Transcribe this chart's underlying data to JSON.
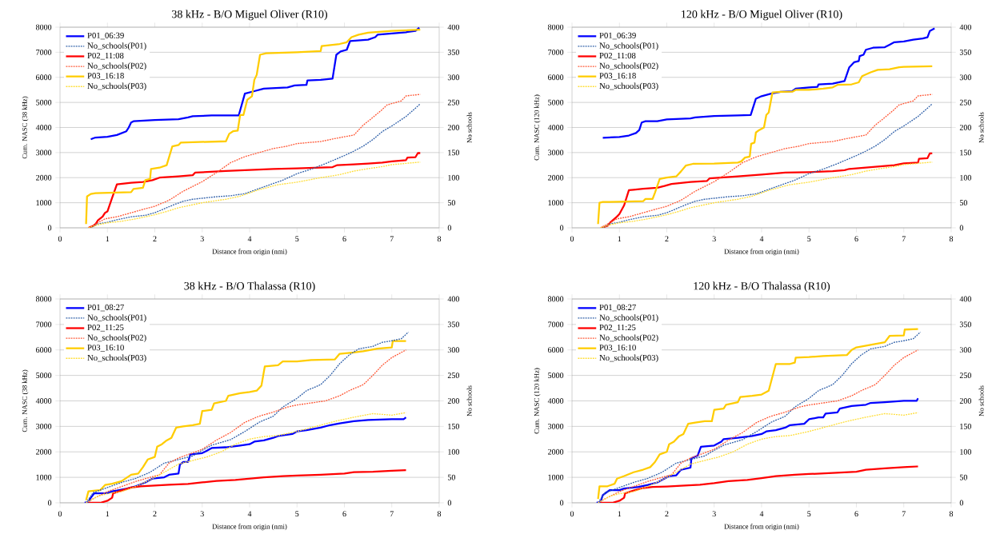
{
  "chart_data": [
    {
      "type": "line",
      "title": "38 kHz - B/O Miguel Oliver (R10)",
      "xlabel": "Distance from origin (nmi)",
      "ylabel": "Cum. NASC (38 kHz)",
      "y2label": "No schools",
      "xlim": [
        0,
        8
      ],
      "xticks": [
        0,
        1,
        2,
        3,
        4,
        5,
        6,
        7,
        8
      ],
      "ylim": [
        0,
        8000
      ],
      "yticks": [
        0,
        1000,
        2000,
        3000,
        4000,
        5000,
        6000,
        7000,
        8000
      ],
      "y2lim": [
        0,
        400
      ],
      "y2ticks": [
        0,
        50,
        100,
        150,
        200,
        250,
        300,
        350,
        400
      ],
      "grid": "y",
      "legend": "top left",
      "series": [
        {
          "name": "P01_06:39",
          "color": "#0000ff",
          "line_style": "solid",
          "x": [
            0.65,
            0.7,
            0.75,
            1.0,
            1.2,
            1.4,
            1.45,
            1.5,
            1.55,
            2.0,
            2.5,
            2.7,
            2.8,
            3.2,
            3.77,
            3.9,
            4.1,
            4.3,
            4.8,
            4.95,
            5.2,
            5.22,
            5.5,
            5.75,
            5.83,
            5.92,
            6.05,
            6.12,
            6.5,
            6.65,
            6.7,
            7.0,
            7.3,
            7.5,
            7.58
          ],
          "values": [
            3530,
            3570,
            3600,
            3630,
            3700,
            3850,
            4000,
            4200,
            4250,
            4300,
            4330,
            4400,
            4450,
            4480,
            4480,
            5350,
            5450,
            5550,
            5600,
            5680,
            5700,
            5880,
            5900,
            5950,
            6900,
            7030,
            7100,
            7450,
            7500,
            7600,
            7700,
            7750,
            7800,
            7850,
            7980
          ]
        },
        {
          "name": "No_schools(P01)",
          "color": "#2e5fa8",
          "line_style": "dotted",
          "axis": "y2",
          "x": [
            0.65,
            0.8,
            1.0,
            1.2,
            1.5,
            1.8,
            2.0,
            2.2,
            2.4,
            2.6,
            2.8,
            3.0,
            3.3,
            3.6,
            3.9,
            4.1,
            4.4,
            4.7,
            5.0,
            5.3,
            5.6,
            5.8,
            6.0,
            6.2,
            6.4,
            6.6,
            6.8,
            7.0,
            7.3,
            7.6
          ],
          "values": [
            0,
            8,
            11,
            16,
            22,
            25,
            30,
            38,
            46,
            53,
            57,
            59,
            62,
            64,
            68,
            75,
            85,
            95,
            108,
            117,
            128,
            136,
            144,
            153,
            163,
            176,
            192,
            203,
            222,
            247
          ]
        },
        {
          "name": "P02_11:08",
          "color": "#ff0000",
          "line_style": "solid",
          "x": [
            0.6,
            0.7,
            0.75,
            0.8,
            0.9,
            0.95,
            1.0,
            1.1,
            1.2,
            1.5,
            1.75,
            1.95,
            2.1,
            2.5,
            2.8,
            2.85,
            3.5,
            4.0,
            4.5,
            5.0,
            5.5,
            5.75,
            5.85,
            6.2,
            6.5,
            6.8,
            7.0,
            7.3,
            7.33,
            7.5,
            7.55,
            7.6
          ],
          "values": [
            0,
            80,
            150,
            300,
            450,
            600,
            650,
            1200,
            1730,
            1800,
            1830,
            1900,
            2000,
            2050,
            2100,
            2200,
            2270,
            2310,
            2350,
            2370,
            2400,
            2420,
            2500,
            2530,
            2560,
            2600,
            2650,
            2700,
            2800,
            2820,
            2980,
            2980
          ]
        },
        {
          "name": "No_schools(P02)",
          "color": "#ff5533",
          "line_style": "dotted",
          "axis": "y2",
          "x": [
            0.6,
            0.7,
            0.95,
            1.2,
            1.5,
            1.8,
            2.0,
            2.3,
            2.6,
            3.0,
            3.3,
            3.6,
            3.9,
            4.2,
            4.5,
            4.8,
            5.0,
            5.5,
            5.8,
            6.2,
            6.4,
            6.6,
            6.8,
            6.9,
            7.2,
            7.3,
            7.6
          ],
          "values": [
            0,
            5,
            18,
            22,
            30,
            38,
            43,
            55,
            73,
            92,
            110,
            130,
            142,
            150,
            158,
            163,
            168,
            172,
            178,
            185,
            205,
            220,
            236,
            245,
            253,
            263,
            266
          ]
        },
        {
          "name": "P03_16:18",
          "color": "#ffcc00",
          "line_style": "solid",
          "x": [
            0.55,
            0.57,
            0.65,
            0.75,
            1.5,
            1.55,
            1.75,
            1.8,
            1.9,
            1.92,
            2.1,
            2.25,
            2.37,
            2.5,
            2.55,
            3.5,
            3.57,
            3.65,
            3.75,
            3.8,
            3.87,
            3.95,
            4.05,
            4.1,
            4.15,
            4.22,
            4.35,
            5.0,
            5.5,
            5.52,
            5.9,
            6.05,
            6.15,
            6.3,
            6.5,
            7.0,
            7.6
          ],
          "values": [
            150,
            1250,
            1350,
            1380,
            1420,
            1550,
            1600,
            1900,
            1950,
            2350,
            2400,
            2500,
            3250,
            3300,
            3400,
            3450,
            3750,
            3850,
            3880,
            4500,
            4500,
            5100,
            5250,
            5900,
            6100,
            6900,
            6960,
            7000,
            7050,
            7250,
            7330,
            7400,
            7600,
            7700,
            7780,
            7850,
            7900
          ]
        },
        {
          "name": "No_schools(P03)",
          "color": "#ffdd33",
          "line_style": "dotted",
          "axis": "y2",
          "x": [
            0.6,
            0.8,
            1.0,
            1.3,
            1.6,
            2.0,
            2.3,
            2.5,
            2.8,
            3.0,
            3.5,
            3.8,
            4.2,
            4.6,
            5.0,
            5.5,
            5.9,
            6.2,
            6.5,
            6.8,
            7.0,
            7.6
          ],
          "values": [
            0,
            6,
            10,
            13,
            18,
            26,
            34,
            40,
            46,
            50,
            57,
            63,
            76,
            86,
            91,
            100,
            106,
            113,
            118,
            122,
            126,
            131
          ]
        }
      ]
    },
    {
      "type": "line",
      "title": "120 kHz - B/O Miguel Oliver (R10)",
      "xlabel": "Distance from origin (nmi)",
      "ylabel": "Cum. NASC (120 kHz)",
      "y2label": "No schools",
      "xlim": [
        0,
        8
      ],
      "xticks": [
        0,
        1,
        2,
        3,
        4,
        5,
        6,
        7,
        8
      ],
      "ylim": [
        0,
        8000
      ],
      "yticks": [
        0,
        1000,
        2000,
        3000,
        4000,
        5000,
        6000,
        7000,
        8000
      ],
      "y2lim": [
        0,
        400
      ],
      "y2ticks": [
        0,
        50,
        100,
        150,
        200,
        250,
        300,
        350,
        400
      ],
      "grid": "y",
      "legend": "top left",
      "series": [
        {
          "name": "P01_06:39",
          "color": "#0000ff",
          "line_style": "solid",
          "x": [
            0.65,
            1.0,
            1.2,
            1.35,
            1.42,
            1.47,
            1.55,
            1.8,
            2.0,
            2.5,
            2.6,
            3.0,
            3.5,
            3.77,
            3.88,
            4.0,
            4.2,
            4.4,
            4.65,
            4.72,
            5.0,
            5.18,
            5.2,
            5.5,
            5.75,
            5.85,
            5.95,
            6.05,
            6.07,
            6.15,
            6.2,
            6.35,
            6.6,
            6.7,
            6.8,
            7.0,
            7.2,
            7.4,
            7.5,
            7.55,
            7.65
          ],
          "values": [
            3590,
            3620,
            3680,
            3780,
            3900,
            4200,
            4250,
            4250,
            4320,
            4360,
            4400,
            4460,
            4480,
            4500,
            5150,
            5250,
            5350,
            5420,
            5450,
            5550,
            5600,
            5620,
            5720,
            5750,
            5850,
            6400,
            6600,
            6650,
            6850,
            6900,
            7100,
            7180,
            7200,
            7300,
            7400,
            7430,
            7500,
            7550,
            7600,
            7850,
            7950
          ]
        },
        {
          "name": "No_schools(P01)",
          "color": "#2e5fa8",
          "line_style": "dotted",
          "axis": "y2",
          "x": [
            0.65,
            0.8,
            1.0,
            1.2,
            1.5,
            1.8,
            2.0,
            2.2,
            2.4,
            2.6,
            2.8,
            3.0,
            3.3,
            3.6,
            3.9,
            4.1,
            4.4,
            4.7,
            5.0,
            5.3,
            5.6,
            5.8,
            6.0,
            6.2,
            6.4,
            6.6,
            6.8,
            7.0,
            7.3,
            7.6
          ],
          "values": [
            0,
            8,
            11,
            16,
            22,
            25,
            30,
            38,
            46,
            53,
            57,
            59,
            62,
            64,
            68,
            75,
            85,
            95,
            108,
            117,
            128,
            136,
            144,
            153,
            163,
            176,
            192,
            203,
            222,
            247
          ]
        },
        {
          "name": "P02_11:08",
          "color": "#ff0000",
          "line_style": "solid",
          "x": [
            0.62,
            0.75,
            0.8,
            0.95,
            1.0,
            1.1,
            1.2,
            1.3,
            1.5,
            1.8,
            1.95,
            2.1,
            2.5,
            2.85,
            2.9,
            3.5,
            4.0,
            4.5,
            5.0,
            5.5,
            5.75,
            5.85,
            6.2,
            6.5,
            6.8,
            7.0,
            7.3,
            7.32,
            7.5,
            7.55,
            7.6
          ],
          "values": [
            0,
            80,
            200,
            450,
            550,
            900,
            1500,
            1520,
            1560,
            1600,
            1670,
            1750,
            1830,
            1870,
            1970,
            2050,
            2120,
            2200,
            2220,
            2260,
            2300,
            2350,
            2400,
            2450,
            2500,
            2570,
            2600,
            2750,
            2780,
            2970,
            2970
          ]
        },
        {
          "name": "No_schools(P02)",
          "color": "#ff5533",
          "line_style": "dotted",
          "axis": "y2",
          "x": [
            0.6,
            0.7,
            0.95,
            1.2,
            1.5,
            1.8,
            2.0,
            2.3,
            2.6,
            3.0,
            3.3,
            3.6,
            3.9,
            4.2,
            4.5,
            4.8,
            5.0,
            5.5,
            5.8,
            6.2,
            6.4,
            6.6,
            6.8,
            6.9,
            7.2,
            7.3,
            7.6
          ],
          "values": [
            0,
            5,
            18,
            22,
            30,
            38,
            43,
            55,
            73,
            92,
            110,
            130,
            142,
            150,
            158,
            163,
            168,
            172,
            178,
            185,
            205,
            220,
            236,
            245,
            253,
            263,
            266
          ]
        },
        {
          "name": "P03_16:18",
          "color": "#ffcc00",
          "line_style": "solid",
          "x": [
            0.55,
            0.58,
            0.65,
            1.0,
            1.5,
            1.55,
            1.7,
            1.75,
            1.85,
            2.0,
            2.2,
            2.3,
            2.4,
            2.55,
            3.0,
            3.5,
            3.57,
            3.65,
            3.75,
            3.78,
            3.85,
            3.88,
            3.95,
            4.05,
            4.1,
            4.15,
            4.23,
            4.4,
            4.65,
            4.72,
            5.0,
            5.3,
            5.5,
            5.6,
            5.9,
            6.05,
            6.12,
            6.3,
            6.45,
            6.7,
            6.9,
            7.0,
            7.6
          ],
          "values": [
            150,
            1000,
            1030,
            1040,
            1060,
            1150,
            1150,
            1400,
            1950,
            2000,
            2050,
            2250,
            2480,
            2550,
            2560,
            2600,
            2650,
            2800,
            2840,
            3350,
            3400,
            3800,
            3900,
            4000,
            4500,
            4600,
            5400,
            5420,
            5430,
            5500,
            5500,
            5550,
            5600,
            5700,
            5720,
            5800,
            6050,
            6200,
            6300,
            6320,
            6400,
            6420,
            6440
          ]
        },
        {
          "name": "No_schools(P03)",
          "color": "#ffdd33",
          "line_style": "dotted",
          "axis": "y2",
          "x": [
            0.6,
            0.8,
            1.0,
            1.3,
            1.6,
            2.0,
            2.3,
            2.5,
            2.8,
            3.0,
            3.5,
            3.8,
            4.2,
            4.6,
            5.0,
            5.5,
            5.9,
            6.2,
            6.5,
            6.8,
            7.0,
            7.6
          ],
          "values": [
            0,
            6,
            10,
            13,
            18,
            26,
            34,
            40,
            46,
            50,
            57,
            63,
            76,
            86,
            91,
            100,
            106,
            113,
            118,
            122,
            126,
            131
          ]
        }
      ]
    },
    {
      "type": "line",
      "title": "38  kHz - B/O Thalassa (R10)",
      "xlabel": "Distance from origin (nmi)",
      "ylabel": "Cum. NASC (38 kHz)",
      "y2label": "No schools",
      "xlim": [
        0,
        8
      ],
      "xticks": [
        0,
        1,
        2,
        3,
        4,
        5,
        6,
        7,
        8
      ],
      "ylim": [
        0,
        8000
      ],
      "yticks": [
        0,
        1000,
        2000,
        3000,
        4000,
        5000,
        6000,
        7000,
        8000
      ],
      "y2lim": [
        0,
        400
      ],
      "y2ticks": [
        0,
        50,
        100,
        150,
        200,
        250,
        300,
        350,
        400
      ],
      "grid": "y",
      "legend": "top left",
      "series": [
        {
          "name": "P01_08:27",
          "color": "#0000ff",
          "line_style": "solid",
          "x": [
            0.52,
            0.6,
            0.65,
            0.72,
            1.0,
            1.1,
            1.2,
            1.4,
            1.6,
            1.8,
            1.95,
            2.2,
            2.3,
            2.5,
            2.53,
            2.6,
            2.7,
            2.75,
            3.0,
            3.1,
            3.2,
            3.5,
            3.8,
            4.0,
            4.1,
            4.3,
            4.5,
            4.6,
            4.9,
            5.0,
            5.2,
            5.5,
            5.7,
            5.9,
            6.2,
            6.5,
            7.0,
            7.25,
            7.3
          ],
          "values": [
            0,
            30,
            200,
            370,
            380,
            450,
            480,
            550,
            650,
            800,
            950,
            1000,
            1100,
            1150,
            1500,
            1600,
            1600,
            1900,
            1950,
            2050,
            2150,
            2180,
            2250,
            2300,
            2400,
            2450,
            2550,
            2620,
            2700,
            2800,
            2850,
            2950,
            3050,
            3120,
            3200,
            3250,
            3280,
            3280,
            3350
          ]
        },
        {
          "name": "No_schools(P01)",
          "color": "#2e5fa8",
          "line_style": "dotted",
          "axis": "y2",
          "x": [
            0.55,
            0.7,
            1.0,
            1.3,
            1.6,
            1.9,
            2.2,
            2.5,
            2.8,
            3.0,
            3.2,
            3.6,
            3.9,
            4.2,
            4.5,
            4.7,
            5.0,
            5.2,
            5.5,
            5.7,
            5.9,
            6.1,
            6.3,
            6.6,
            6.8,
            7.0,
            7.2,
            7.35
          ],
          "values": [
            0,
            20,
            30,
            40,
            48,
            60,
            78,
            85,
            92,
            103,
            113,
            124,
            140,
            158,
            170,
            188,
            205,
            220,
            232,
            250,
            273,
            290,
            302,
            307,
            315,
            318,
            322,
            335
          ]
        },
        {
          "name": "P02_11:25",
          "color": "#ff0000",
          "line_style": "solid",
          "x": [
            0.6,
            0.85,
            1.0,
            1.1,
            1.12,
            1.3,
            1.5,
            1.7,
            2.0,
            2.3,
            2.7,
            3.0,
            3.3,
            3.7,
            4.0,
            4.3,
            4.7,
            5.0,
            5.5,
            6.0,
            6.2,
            6.6,
            7.0,
            7.3
          ],
          "values": [
            0,
            0,
            80,
            200,
            370,
            480,
            600,
            650,
            680,
            710,
            740,
            800,
            860,
            900,
            950,
            1000,
            1050,
            1070,
            1100,
            1150,
            1200,
            1220,
            1260,
            1280
          ]
        },
        {
          "name": "No_schools(P02)",
          "color": "#ff5533",
          "line_style": "dotted",
          "axis": "y2",
          "x": [
            0.55,
            0.7,
            1.0,
            1.3,
            1.6,
            1.9,
            2.1,
            2.3,
            2.5,
            2.8,
            3.0,
            3.3,
            3.6,
            3.9,
            4.2,
            4.5,
            4.8,
            5.0,
            5.3,
            5.6,
            5.9,
            6.1,
            6.4,
            6.6,
            6.8,
            7.0,
            7.3
          ],
          "values": [
            0,
            8,
            22,
            32,
            42,
            50,
            55,
            78,
            88,
            98,
            105,
            123,
            138,
            158,
            170,
            178,
            188,
            192,
            196,
            200,
            210,
            220,
            232,
            250,
            270,
            285,
            300
          ]
        },
        {
          "name": "P03_16:10",
          "color": "#ffcc00",
          "line_style": "solid",
          "x": [
            0.55,
            0.6,
            0.75,
            0.85,
            0.95,
            1.1,
            1.3,
            1.5,
            1.65,
            1.75,
            1.85,
            2.0,
            2.05,
            2.15,
            2.25,
            2.35,
            2.45,
            2.6,
            2.8,
            2.95,
            3.0,
            3.2,
            3.25,
            3.5,
            3.55,
            3.8,
            4.0,
            4.15,
            4.25,
            4.32,
            4.6,
            4.7,
            5.0,
            5.3,
            5.8,
            5.9,
            6.2,
            6.4,
            6.7,
            7.0,
            7.02,
            7.3
          ],
          "values": [
            100,
            450,
            480,
            500,
            700,
            750,
            850,
            1100,
            1150,
            1400,
            1700,
            1800,
            2200,
            2300,
            2450,
            2550,
            2950,
            3000,
            3050,
            3100,
            3600,
            3650,
            3900,
            4000,
            4200,
            4300,
            4350,
            4400,
            4600,
            5350,
            5400,
            5550,
            5550,
            5600,
            5630,
            5850,
            5900,
            5950,
            6050,
            6100,
            6350,
            6350
          ]
        },
        {
          "name": "No_schools(P03)",
          "color": "#ffdd33",
          "line_style": "dotted",
          "axis": "y2",
          "x": [
            0.55,
            0.8,
            1.0,
            1.3,
            1.6,
            1.9,
            2.2,
            2.5,
            2.8,
            3.1,
            3.4,
            3.7,
            4.0,
            4.3,
            4.6,
            5.0,
            5.4,
            5.8,
            6.2,
            6.6,
            7.0,
            7.3
          ],
          "values": [
            0,
            13,
            18,
            22,
            32,
            45,
            60,
            76,
            83,
            90,
            100,
            115,
            125,
            130,
            132,
            140,
            150,
            160,
            168,
            175,
            172,
            177
          ]
        }
      ]
    },
    {
      "type": "line",
      "title": "120  kHz - B/O Thalassa (R10)",
      "xlabel": "Distance from origin (nmi)",
      "ylabel": "Cum. NASC (120 kHz)",
      "y2label": "No schools",
      "xlim": [
        0,
        8
      ],
      "xticks": [
        0,
        1,
        2,
        3,
        4,
        5,
        6,
        7,
        8
      ],
      "ylim": [
        0,
        8000
      ],
      "yticks": [
        0,
        1000,
        2000,
        3000,
        4000,
        5000,
        6000,
        7000,
        8000
      ],
      "y2lim": [
        0,
        400
      ],
      "y2ticks": [
        0,
        50,
        100,
        150,
        200,
        250,
        300,
        350,
        400
      ],
      "grid": "y",
      "legend": "top left",
      "series": [
        {
          "name": "P01_08:27",
          "color": "#0000ff",
          "line_style": "solid",
          "x": [
            0.52,
            0.6,
            0.65,
            0.72,
            0.8,
            1.0,
            1.1,
            1.4,
            1.6,
            1.8,
            1.95,
            2.05,
            2.2,
            2.3,
            2.5,
            2.52,
            2.65,
            2.72,
            3.0,
            3.15,
            3.2,
            3.5,
            3.8,
            4.0,
            4.1,
            4.3,
            4.5,
            4.6,
            4.9,
            5.0,
            5.2,
            5.3,
            5.35,
            5.6,
            5.65,
            5.9,
            6.2,
            6.3,
            6.6,
            7.0,
            7.27,
            7.3
          ],
          "values": [
            0,
            30,
            300,
            400,
            500,
            500,
            560,
            620,
            700,
            800,
            950,
            1050,
            1080,
            1300,
            1380,
            1750,
            1850,
            2200,
            2250,
            2400,
            2500,
            2550,
            2620,
            2700,
            2800,
            2850,
            2950,
            3050,
            3100,
            3280,
            3350,
            3350,
            3500,
            3550,
            3700,
            3800,
            3850,
            3920,
            3950,
            4000,
            4000,
            4100
          ]
        },
        {
          "name": "No_schools(P01)",
          "color": "#2e5fa8",
          "line_style": "dotted",
          "axis": "y2",
          "x": [
            0.55,
            0.7,
            1.0,
            1.3,
            1.6,
            1.9,
            2.2,
            2.5,
            2.8,
            3.0,
            3.2,
            3.6,
            3.9,
            4.2,
            4.5,
            4.7,
            5.0,
            5.2,
            5.5,
            5.7,
            5.9,
            6.1,
            6.3,
            6.6,
            6.8,
            7.0,
            7.2,
            7.35
          ],
          "values": [
            0,
            20,
            30,
            40,
            48,
            60,
            78,
            85,
            92,
            103,
            113,
            124,
            140,
            158,
            170,
            188,
            205,
            220,
            232,
            250,
            273,
            290,
            302,
            307,
            315,
            318,
            322,
            335
          ]
        },
        {
          "name": "P02_11:25",
          "color": "#ff0000",
          "line_style": "solid",
          "x": [
            0.6,
            0.85,
            1.0,
            1.1,
            1.12,
            1.3,
            1.5,
            1.7,
            2.0,
            2.3,
            2.7,
            3.0,
            3.3,
            3.7,
            4.0,
            4.3,
            4.7,
            5.0,
            5.5,
            6.0,
            6.2,
            6.6,
            7.0,
            7.3
          ],
          "values": [
            0,
            0,
            80,
            200,
            370,
            480,
            580,
            620,
            640,
            670,
            710,
            770,
            850,
            900,
            970,
            1050,
            1100,
            1130,
            1170,
            1220,
            1300,
            1350,
            1400,
            1430
          ]
        },
        {
          "name": "No_schools(P02)",
          "color": "#ff5533",
          "line_style": "dotted",
          "axis": "y2",
          "x": [
            0.55,
            0.7,
            1.0,
            1.3,
            1.6,
            1.9,
            2.1,
            2.3,
            2.5,
            2.8,
            3.0,
            3.3,
            3.6,
            3.9,
            4.2,
            4.5,
            4.8,
            5.0,
            5.3,
            5.6,
            5.9,
            6.1,
            6.4,
            6.6,
            6.8,
            7.0,
            7.3
          ],
          "values": [
            0,
            8,
            22,
            32,
            42,
            50,
            55,
            78,
            88,
            98,
            105,
            123,
            138,
            158,
            170,
            178,
            188,
            192,
            196,
            200,
            210,
            220,
            232,
            250,
            270,
            285,
            300
          ]
        },
        {
          "name": "P03_16:10",
          "color": "#ffcc00",
          "line_style": "solid",
          "x": [
            0.55,
            0.58,
            0.75,
            0.9,
            0.95,
            1.1,
            1.3,
            1.5,
            1.65,
            1.75,
            1.85,
            2.0,
            2.05,
            2.15,
            2.25,
            2.35,
            2.45,
            2.6,
            2.8,
            2.95,
            3.0,
            3.2,
            3.25,
            3.5,
            3.55,
            3.8,
            4.0,
            4.15,
            4.3,
            4.6,
            4.7,
            4.72,
            5.0,
            5.3,
            5.8,
            5.9,
            6.0,
            6.3,
            6.6,
            6.7,
            7.0,
            7.02,
            7.3
          ],
          "values": [
            150,
            650,
            650,
            750,
            950,
            1050,
            1200,
            1300,
            1400,
            1600,
            1900,
            2000,
            2300,
            2400,
            2600,
            2700,
            3100,
            3150,
            3200,
            3200,
            3650,
            3700,
            3850,
            3950,
            4150,
            4200,
            4250,
            4400,
            5450,
            5450,
            5500,
            5700,
            5720,
            5760,
            5800,
            6000,
            6100,
            6200,
            6300,
            6550,
            6570,
            6800,
            6820
          ]
        },
        {
          "name": "No_schools(P03)",
          "color": "#ffdd33",
          "line_style": "dotted",
          "axis": "y2",
          "x": [
            0.55,
            0.8,
            1.0,
            1.3,
            1.6,
            1.9,
            2.2,
            2.5,
            2.8,
            3.1,
            3.4,
            3.7,
            4.0,
            4.3,
            4.6,
            5.0,
            5.4,
            5.8,
            6.2,
            6.6,
            7.0,
            7.3
          ],
          "values": [
            0,
            13,
            18,
            22,
            32,
            45,
            60,
            76,
            83,
            90,
            100,
            115,
            125,
            130,
            132,
            140,
            150,
            160,
            168,
            175,
            172,
            177
          ]
        }
      ]
    }
  ]
}
